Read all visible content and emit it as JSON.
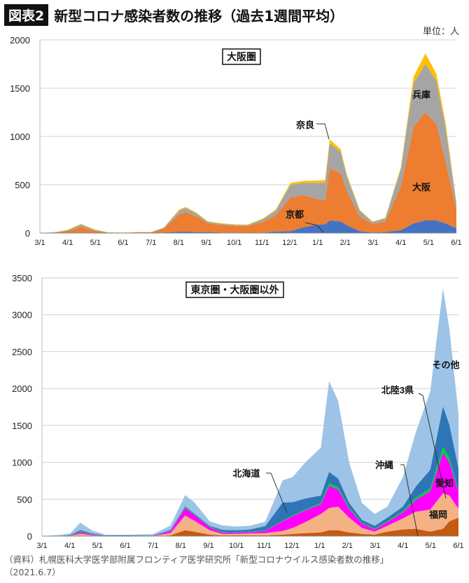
{
  "header": {
    "badge": "図表2",
    "title": "新型コロナ感染者数の推移（過去1週間平均）",
    "unit": "単位：人"
  },
  "source": {
    "line1": "（資料）札幌医科大学医学部附属フロンティア医学研究所「新型コロナウイルス感染者数の推移」",
    "line2": "（2021.6.7）"
  },
  "chart_data": [
    {
      "type": "area",
      "stacked": true,
      "title": "大阪圏",
      "ylim": [
        0,
        2000
      ],
      "yticks": [
        0,
        500,
        1000,
        1500,
        2000
      ],
      "grid": true,
      "xticks": [
        "3/1",
        "4/1",
        "5/1",
        "6/1",
        "7/1",
        "8/1",
        "9/1",
        "10/1",
        "11/1",
        "12/1",
        "1/1",
        "2/1",
        "3/1",
        "4/1",
        "5/1",
        "6/1"
      ],
      "xrange": [
        "2020-03-01",
        "2021-06-01"
      ],
      "x": [
        "2020-03-01",
        "2020-03-20",
        "2020-04-01",
        "2020-04-15",
        "2020-05-01",
        "2020-05-15",
        "2020-06-01",
        "2020-06-15",
        "2020-07-01",
        "2020-07-15",
        "2020-08-01",
        "2020-08-08",
        "2020-08-20",
        "2020-09-01",
        "2020-09-15",
        "2020-10-01",
        "2020-10-15",
        "2020-11-01",
        "2020-11-15",
        "2020-12-01",
        "2020-12-15",
        "2021-01-01",
        "2021-01-08",
        "2021-01-13",
        "2021-01-25",
        "2021-02-01",
        "2021-02-15",
        "2021-03-01",
        "2021-03-15",
        "2021-04-01",
        "2021-04-15",
        "2021-04-28",
        "2021-05-10",
        "2021-05-20",
        "2021-06-01"
      ],
      "series": [
        {
          "name": "京都",
          "color": "#4472c4",
          "values": [
            0,
            2,
            3,
            5,
            2,
            1,
            1,
            2,
            2,
            5,
            15,
            15,
            12,
            12,
            5,
            5,
            3,
            5,
            15,
            20,
            60,
            90,
            90,
            130,
            120,
            80,
            20,
            5,
            10,
            30,
            100,
            130,
            130,
            100,
            50
          ]
        },
        {
          "name": "大阪",
          "color": "#ed7d31",
          "values": [
            0,
            5,
            20,
            60,
            20,
            3,
            2,
            5,
            5,
            40,
            180,
            200,
            160,
            90,
            80,
            70,
            70,
            110,
            170,
            350,
            330,
            260,
            250,
            540,
            500,
            350,
            150,
            90,
            110,
            450,
            1000,
            1120,
            1000,
            650,
            190
          ]
        },
        {
          "name": "兵庫",
          "color": "#a5a5a5",
          "values": [
            0,
            5,
            10,
            25,
            10,
            2,
            1,
            2,
            3,
            10,
            40,
            45,
            30,
            15,
            12,
            10,
            10,
            30,
            50,
            130,
            130,
            170,
            180,
            260,
            220,
            150,
            60,
            20,
            30,
            180,
            450,
            500,
            450,
            350,
            60
          ]
        },
        {
          "name": "奈良",
          "color": "#ffc000",
          "values": [
            0,
            2,
            2,
            5,
            3,
            1,
            1,
            1,
            1,
            3,
            10,
            10,
            8,
            5,
            5,
            5,
            5,
            8,
            10,
            20,
            20,
            25,
            30,
            40,
            30,
            20,
            10,
            5,
            8,
            20,
            70,
            110,
            70,
            50,
            20
          ]
        }
      ]
    },
    {
      "type": "area",
      "stacked": true,
      "title": "東京圏・大阪圏以外",
      "ylim": [
        0,
        3500
      ],
      "yticks": [
        0,
        500,
        1000,
        1500,
        2000,
        2500,
        3000,
        3500
      ],
      "grid": true,
      "xticks": [
        "3/1",
        "4/1",
        "5/1",
        "6/1",
        "7/1",
        "8/1",
        "9/1",
        "10/1",
        "11/1",
        "12/1",
        "1/1",
        "2/1",
        "3/1",
        "4/1",
        "5/1",
        "6/1"
      ],
      "xrange": [
        "2020-03-01",
        "2021-06-01"
      ],
      "x": [
        "2020-03-01",
        "2020-03-20",
        "2020-04-01",
        "2020-04-12",
        "2020-04-25",
        "2020-05-10",
        "2020-06-01",
        "2020-07-01",
        "2020-07-20",
        "2020-08-05",
        "2020-08-15",
        "2020-09-01",
        "2020-09-15",
        "2020-10-01",
        "2020-10-15",
        "2020-11-01",
        "2020-11-20",
        "2020-12-01",
        "2020-12-15",
        "2021-01-01",
        "2021-01-10",
        "2021-01-20",
        "2021-02-01",
        "2021-02-15",
        "2021-03-01",
        "2021-03-15",
        "2021-04-01",
        "2021-04-15",
        "2021-05-01",
        "2021-05-15",
        "2021-05-22",
        "2021-06-01"
      ],
      "series": [
        {
          "name": "沖縄",
          "color": "#c55a11",
          "values": [
            0,
            0,
            0,
            2,
            1,
            0,
            1,
            2,
            10,
            80,
            60,
            20,
            10,
            10,
            10,
            10,
            20,
            30,
            40,
            50,
            80,
            80,
            50,
            30,
            20,
            60,
            90,
            100,
            60,
            100,
            200,
            250
          ]
        },
        {
          "name": "福岡",
          "color": "#f4b183",
          "values": [
            0,
            0,
            5,
            30,
            10,
            2,
            1,
            2,
            30,
            200,
            150,
            60,
            20,
            20,
            25,
            30,
            50,
            80,
            150,
            250,
            300,
            320,
            200,
            80,
            40,
            80,
            150,
            230,
            300,
            480,
            350,
            120
          ]
        },
        {
          "name": "愛知",
          "color": "#ff00ff",
          "values": [
            0,
            0,
            5,
            20,
            10,
            2,
            1,
            2,
            30,
            100,
            80,
            40,
            20,
            15,
            20,
            30,
            130,
            160,
            160,
            130,
            300,
            230,
            120,
            60,
            30,
            50,
            80,
            160,
            250,
            550,
            450,
            230
          ]
        },
        {
          "name": "北陸3県",
          "color": "#00cc44",
          "values": [
            0,
            0,
            2,
            10,
            5,
            1,
            1,
            1,
            5,
            15,
            10,
            10,
            5,
            5,
            5,
            5,
            5,
            10,
            10,
            20,
            40,
            30,
            20,
            10,
            10,
            10,
            20,
            30,
            40,
            80,
            60,
            20
          ]
        },
        {
          "name": "北海道",
          "color": "#2e75b6",
          "values": [
            0,
            2,
            5,
            20,
            10,
            5,
            5,
            5,
            10,
            10,
            10,
            10,
            30,
            30,
            30,
            60,
            250,
            180,
            150,
            100,
            150,
            120,
            60,
            40,
            40,
            50,
            60,
            150,
            250,
            550,
            450,
            300
          ]
        },
        {
          "name": "その他",
          "color": "#9dc3e6",
          "values": [
            0,
            15,
            20,
            100,
            40,
            8,
            10,
            15,
            60,
            150,
            150,
            60,
            60,
            50,
            50,
            60,
            300,
            340,
            490,
            650,
            1230,
            1050,
            550,
            230,
            160,
            150,
            400,
            730,
            1060,
            1600,
            1300,
            730
          ]
        }
      ]
    }
  ]
}
